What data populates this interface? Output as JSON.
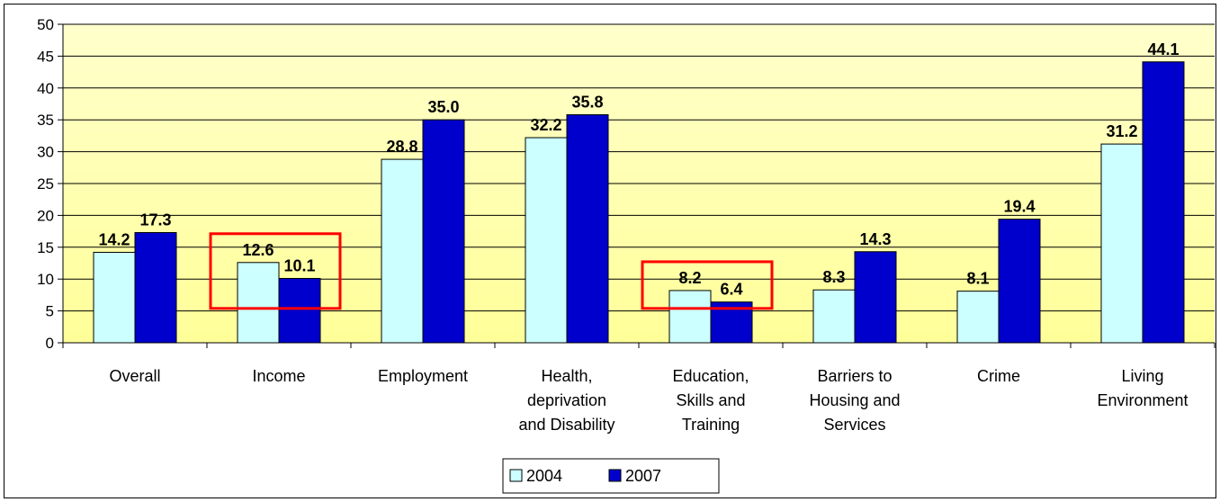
{
  "chart_data": {
    "type": "bar",
    "categories": [
      [
        "Overall"
      ],
      [
        "Income"
      ],
      [
        "Employment"
      ],
      [
        "Health,",
        "deprivation",
        "and Disability"
      ],
      [
        "Education,",
        "Skills and",
        "Training"
      ],
      [
        "Barriers to",
        "Housing and",
        "Services"
      ],
      [
        "Crime"
      ],
      [
        "Living",
        "Environment"
      ]
    ],
    "series": [
      {
        "name": "2004",
        "color": "#ccffff",
        "values": [
          14.2,
          12.6,
          28.8,
          32.2,
          8.2,
          8.3,
          8.1,
          31.2
        ],
        "labels": [
          "14.2",
          "12.6",
          "28.8",
          "32.2",
          "8.2",
          "8.3",
          "8.1",
          "31.2"
        ]
      },
      {
        "name": "2007",
        "color": "#0000cc",
        "values": [
          17.3,
          10.1,
          35.0,
          35.8,
          6.4,
          14.3,
          19.4,
          44.1
        ],
        "labels": [
          "17.3",
          "10.1",
          "35.0",
          "35.8",
          "6.4",
          "14.3",
          "19.4",
          "44.1"
        ]
      }
    ],
    "ylim": [
      0,
      50
    ],
    "yticks": [
      0,
      5,
      10,
      15,
      20,
      25,
      30,
      35,
      40,
      45,
      50
    ],
    "grid": true,
    "legend_position": "bottom",
    "highlighted_categories": [
      "Income",
      "Education, Skills and Training"
    ],
    "highlight_color": "#ff0000",
    "plot_background": [
      "#ffffcc",
      "#ffff99"
    ]
  }
}
